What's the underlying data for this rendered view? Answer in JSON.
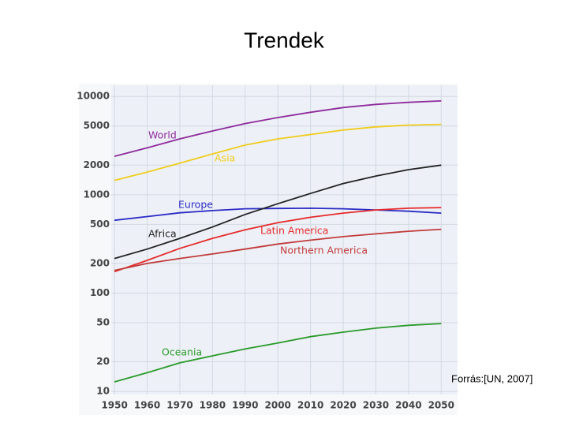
{
  "title": "Trendek",
  "source": "Forrás:[UN, 2007]",
  "chart_data": {
    "type": "line",
    "log_scale_y": true,
    "grid": true,
    "x": [
      1950,
      1960,
      1970,
      1980,
      1990,
      2000,
      2010,
      2020,
      2030,
      2040,
      2050
    ],
    "xlim": [
      1949,
      2055
    ],
    "xticks": [
      1950,
      1960,
      1970,
      1980,
      1990,
      2000,
      2010,
      2020,
      2030,
      2040,
      2050
    ],
    "ylim": [
      9.3,
      13000
    ],
    "yticks": [
      10,
      20,
      50,
      100,
      200,
      500,
      1000,
      2000,
      5000,
      10000
    ],
    "series": [
      {
        "name": "World",
        "color": "#8e2a9c",
        "values": [
          2460,
          3000,
          3700,
          4450,
          5300,
          6100,
          6900,
          7700,
          8300,
          8700,
          9000
        ]
      },
      {
        "name": "Asia",
        "color": "#f0cc1c",
        "values": [
          1400,
          1700,
          2100,
          2600,
          3200,
          3700,
          4100,
          4550,
          4900,
          5100,
          5200
        ]
      },
      {
        "name": "Europe",
        "color": "#2a2ac4",
        "values": [
          550,
          600,
          655,
          690,
          720,
          725,
          730,
          720,
          700,
          680,
          650
        ]
      },
      {
        "name": "Africa",
        "color": "#222222",
        "values": [
          225,
          280,
          360,
          470,
          630,
          810,
          1030,
          1300,
          1550,
          1800,
          2000
        ]
      },
      {
        "name": "Latin America",
        "color": "#e62a2a",
        "values": [
          165,
          215,
          285,
          360,
          440,
          520,
          590,
          650,
          700,
          730,
          740
        ]
      },
      {
        "name": "Northern America",
        "color": "#c23a3a",
        "values": [
          170,
          200,
          225,
          250,
          280,
          315,
          345,
          375,
          400,
          425,
          445
        ]
      },
      {
        "name": "Oceania",
        "color": "#2a9a2a",
        "values": [
          12.5,
          15.5,
          19.5,
          23,
          27,
          31,
          36,
          40,
          44,
          47,
          49
        ]
      }
    ]
  }
}
